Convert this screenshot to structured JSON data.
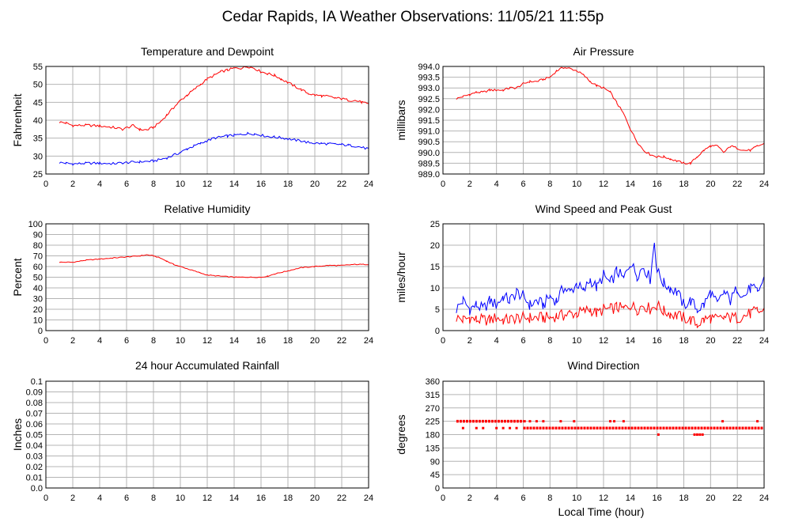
{
  "page_title": "Cedar Rapids, IA Weather Observations: 11/05/21 11:55p",
  "footer_xlabel": "Local Time (hour)",
  "colors": {
    "red": "#ff0000",
    "blue": "#0000ff",
    "grid": "#b4b4b4"
  },
  "chart_data": [
    {
      "id": "temp",
      "type": "line",
      "title": "Temperature and Dewpoint",
      "ylabel": "Fahrenheit",
      "xlabel": "",
      "xlim": [
        0,
        24
      ],
      "ylim": [
        25,
        55
      ],
      "xticks": [
        2,
        4,
        6,
        8,
        10,
        12,
        14,
        16,
        18,
        20,
        22,
        24
      ],
      "yticks": [
        25,
        30,
        35,
        40,
        45,
        50,
        55
      ],
      "ytick_labels": [
        "25",
        "30",
        "35",
        "40",
        "45",
        "50",
        "55"
      ],
      "grid": true,
      "series": [
        {
          "color": "#ff0000",
          "x": [
            1,
            1.5,
            2,
            3,
            4,
            5,
            5.7,
            6.5,
            7,
            7.5,
            8,
            8.5,
            9,
            9.5,
            10,
            10.5,
            11,
            11.5,
            12,
            12.5,
            13,
            13.5,
            14,
            14.5,
            15,
            15.5,
            16,
            16.5,
            17,
            17.5,
            18,
            18.5,
            19,
            19.5,
            20,
            20.5,
            21,
            21.5,
            22,
            22.5,
            23,
            23.5,
            24
          ],
          "y": [
            39.5,
            39.2,
            38.5,
            38.6,
            38.4,
            38,
            37.5,
            38.5,
            37.4,
            37.3,
            38,
            39.5,
            41.5,
            43.5,
            45.5,
            47,
            48.5,
            50,
            51.5,
            52.5,
            53.5,
            54,
            54.5,
            54.5,
            55,
            54.5,
            53.5,
            53,
            52.5,
            51.5,
            50.5,
            49.5,
            48.5,
            47.5,
            47,
            46.8,
            46.6,
            46.2,
            46,
            45.6,
            45.5,
            45,
            44.4
          ]
        },
        {
          "color": "#0000ff",
          "x": [
            1,
            1.5,
            2,
            3,
            4,
            5,
            6,
            7,
            8,
            9,
            10,
            10.5,
            11,
            11.5,
            12,
            12.5,
            13,
            13.5,
            14,
            14.5,
            15,
            15.5,
            16,
            16.5,
            17,
            17.5,
            18,
            18.5,
            19,
            19.5,
            20,
            20.5,
            21,
            21.5,
            22,
            22.5,
            23,
            23.5,
            24
          ],
          "y": [
            28.2,
            28,
            27.8,
            28,
            28,
            27.9,
            28.2,
            28.4,
            28.6,
            29.5,
            31,
            32,
            32.8,
            33.5,
            34.3,
            35,
            35.3,
            35.6,
            35.8,
            36,
            36.3,
            36.2,
            35.8,
            35.5,
            35.3,
            35.1,
            34.8,
            34.5,
            34.2,
            33.8,
            33.6,
            33.5,
            33.4,
            33.3,
            33.2,
            33,
            32.8,
            32.4,
            32
          ]
        }
      ]
    },
    {
      "id": "pres",
      "type": "line",
      "title": "Air Pressure",
      "ylabel": "millibars",
      "xlabel": "",
      "xlim": [
        0,
        24
      ],
      "ylim": [
        989.0,
        994.0
      ],
      "xticks": [
        2,
        4,
        6,
        8,
        10,
        12,
        14,
        16,
        18,
        20,
        22,
        24
      ],
      "yticks": [
        989,
        989.5,
        990,
        990.5,
        991,
        991.5,
        992,
        992.5,
        993,
        993.5,
        994
      ],
      "ytick_labels": [
        "989.0",
        "989.5",
        "990.0",
        "990.5",
        "991.0",
        "991.5",
        "992.0",
        "992.5",
        "993.0",
        "993.5",
        "994.0"
      ],
      "grid": true,
      "series": [
        {
          "color": "#ff0000",
          "x": [
            1,
            1.5,
            2,
            2.5,
            3,
            3.5,
            4,
            4.5,
            5,
            5.5,
            6,
            6.5,
            7,
            7.5,
            8,
            8.5,
            9,
            9.5,
            10,
            10.5,
            11,
            11.5,
            12,
            12.5,
            13,
            13.5,
            14,
            14.5,
            15,
            15.5,
            16,
            16.5,
            17,
            17.5,
            18,
            18.5,
            19,
            19.5,
            20,
            20.5,
            21,
            21.5,
            22,
            22.5,
            23,
            23.5,
            24
          ],
          "y": [
            992.5,
            992.6,
            992.7,
            992.8,
            992.8,
            992.9,
            992.9,
            992.9,
            993,
            993,
            993.2,
            993.3,
            993.3,
            993.4,
            993.5,
            993.8,
            993.95,
            993.9,
            993.8,
            993.6,
            993.3,
            993.1,
            993,
            992.8,
            992.3,
            991.8,
            991.1,
            990.5,
            990.1,
            989.9,
            989.8,
            989.8,
            989.7,
            989.6,
            989.5,
            989.5,
            989.8,
            990.1,
            990.3,
            990.3,
            990,
            990.3,
            990.2,
            990.1,
            990.1,
            990.3,
            990.4
          ]
        },
        {
          "color": "#0000ff",
          "x": [],
          "y": []
        }
      ]
    },
    {
      "id": "rh",
      "type": "line",
      "title": "Relative Humidity",
      "ylabel": "Percent",
      "xlabel": "",
      "xlim": [
        0,
        24
      ],
      "ylim": [
        0,
        100
      ],
      "xticks": [
        2,
        4,
        6,
        8,
        10,
        12,
        14,
        16,
        18,
        20,
        22,
        24
      ],
      "yticks": [
        0,
        10,
        20,
        30,
        40,
        50,
        60,
        70,
        80,
        90,
        100
      ],
      "ytick_labels": [
        "0",
        "10",
        "20",
        "30",
        "40",
        "50",
        "60",
        "70",
        "80",
        "90",
        "100"
      ],
      "grid": true,
      "series": [
        {
          "color": "#ff0000",
          "x": [
            1,
            2,
            3,
            4,
            5,
            6,
            7,
            7.5,
            8,
            8.5,
            9,
            9.5,
            10,
            10.5,
            11,
            12,
            13,
            14,
            15,
            16,
            16.5,
            17,
            18,
            19,
            20,
            21,
            22,
            23,
            24
          ],
          "y": [
            64,
            64,
            66,
            67,
            68,
            69,
            70,
            71,
            70,
            68,
            65,
            62,
            60,
            58,
            56,
            52,
            51,
            50,
            50,
            50,
            51,
            53,
            56,
            59,
            60,
            61,
            61,
            62,
            62
          ]
        }
      ]
    },
    {
      "id": "wind",
      "type": "line",
      "title": "Wind Speed and Peak Gust",
      "ylabel": "miles/hour",
      "xlabel": "",
      "xlim": [
        0,
        24
      ],
      "ylim": [
        0,
        25
      ],
      "xticks": [
        2,
        4,
        6,
        8,
        10,
        12,
        14,
        16,
        18,
        20,
        22,
        24
      ],
      "yticks": [
        0,
        5,
        10,
        15,
        20,
        25
      ],
      "ytick_labels": [
        "0",
        "5",
        "10",
        "15",
        "20",
        "25"
      ],
      "grid": true,
      "series": [
        {
          "color": "#0000ff",
          "x": [
            1,
            1.5,
            2,
            2.5,
            3,
            3.5,
            4,
            4.5,
            5,
            5.5,
            6,
            6.5,
            7,
            7.5,
            8,
            8.5,
            9,
            9.5,
            10,
            10.5,
            11,
            11.5,
            12,
            12.5,
            13,
            13.5,
            14,
            14.5,
            15,
            15.5,
            15.8,
            16,
            16.5,
            17,
            17.5,
            18,
            18.5,
            19,
            19.5,
            20,
            20.5,
            21,
            21.5,
            22,
            22.5,
            23,
            23.5,
            24
          ],
          "y": [
            5,
            7,
            5,
            6,
            5,
            7,
            6,
            8,
            7,
            9,
            8,
            6,
            7,
            6,
            8,
            7,
            10,
            9,
            11,
            9,
            12,
            10,
            13,
            11,
            14,
            12,
            16,
            13,
            15,
            12,
            21,
            14,
            11,
            10,
            9,
            6,
            7,
            5,
            6,
            9,
            6,
            9,
            7,
            10,
            8,
            10,
            9,
            12
          ]
        },
        {
          "color": "#ff0000",
          "x": [
            1,
            1.5,
            2,
            2.5,
            3,
            3.5,
            4,
            4.5,
            5,
            5.5,
            6,
            6.5,
            7,
            7.5,
            8,
            8.5,
            9,
            9.5,
            10,
            10.5,
            11,
            11.5,
            12,
            12.5,
            13,
            13.5,
            14,
            14.5,
            15,
            15.5,
            16,
            16.5,
            17,
            17.5,
            18,
            18.5,
            19,
            19.5,
            20,
            20.5,
            21,
            21.5,
            22,
            22.5,
            23,
            23.5,
            24
          ],
          "y": [
            3,
            2.5,
            3,
            2.5,
            2.5,
            2.5,
            3,
            2.5,
            2.5,
            3,
            3,
            3,
            3,
            3,
            3,
            3.5,
            3.5,
            4,
            4,
            4.5,
            5,
            4,
            5,
            5,
            5.5,
            5,
            6,
            5,
            6,
            5,
            6,
            4.5,
            4,
            3.5,
            3,
            2.5,
            1.5,
            2.5,
            3,
            2.5,
            3,
            3,
            3,
            3.5,
            4,
            4.5,
            4.5
          ]
        }
      ]
    },
    {
      "id": "rain",
      "type": "line",
      "title": "24 hour Accumulated Rainfall",
      "ylabel": "Inches",
      "xlabel": "",
      "xlim": [
        0,
        24
      ],
      "ylim": [
        0,
        0.1
      ],
      "xticks": [
        2,
        4,
        6,
        8,
        10,
        12,
        14,
        16,
        18,
        20,
        22,
        24
      ],
      "yticks": [
        0,
        0.01,
        0.02,
        0.03,
        0.04,
        0.05,
        0.06,
        0.07,
        0.08,
        0.09,
        0.1
      ],
      "ytick_labels": [
        "0.0",
        "0.01",
        "0.02",
        "0.03",
        "0.04",
        "0.05",
        "0.06",
        "0.07",
        "0.08",
        "0.09",
        "0.1"
      ],
      "grid": true,
      "series": [
        {
          "color": "#ff0000",
          "x": [
            1,
            24
          ],
          "y": [
            0,
            0
          ]
        }
      ]
    },
    {
      "id": "wdir",
      "type": "scatter",
      "title": "Wind Direction",
      "ylabel": "degrees",
      "xlabel": "Local Time (hour)",
      "xlim": [
        0,
        24
      ],
      "ylim": [
        0,
        360
      ],
      "xticks": [
        2,
        4,
        6,
        8,
        10,
        12,
        14,
        16,
        18,
        20,
        22,
        24
      ],
      "yticks": [
        0,
        45,
        90,
        135,
        180,
        225,
        270,
        315,
        360
      ],
      "ytick_labels": [
        "0",
        "45",
        "90",
        "135",
        "180",
        "225",
        "270",
        "315",
        "360"
      ],
      "grid": true,
      "series": [
        {
          "color": "#ff0000",
          "segments": [
            [
              1,
              6,
              225
            ],
            [
              6,
              24,
              202
            ]
          ],
          "points": [
            [
              1.5,
              202
            ],
            [
              2.5,
              202
            ],
            [
              3,
              202
            ],
            [
              4,
              202
            ],
            [
              4.5,
              202
            ],
            [
              5,
              202
            ],
            [
              5.5,
              202
            ],
            [
              6.1,
              225
            ],
            [
              6.5,
              225
            ],
            [
              7,
              225
            ],
            [
              7.5,
              225
            ],
            [
              8.8,
              225
            ],
            [
              9.8,
              225
            ],
            [
              12.5,
              225
            ],
            [
              12.8,
              225
            ],
            [
              13.5,
              225
            ],
            [
              16.1,
              180
            ],
            [
              18.8,
              180
            ],
            [
              19,
              180
            ],
            [
              19.2,
              180
            ],
            [
              19.4,
              180
            ],
            [
              20.9,
              225
            ],
            [
              23.5,
              225
            ]
          ]
        }
      ]
    }
  ]
}
